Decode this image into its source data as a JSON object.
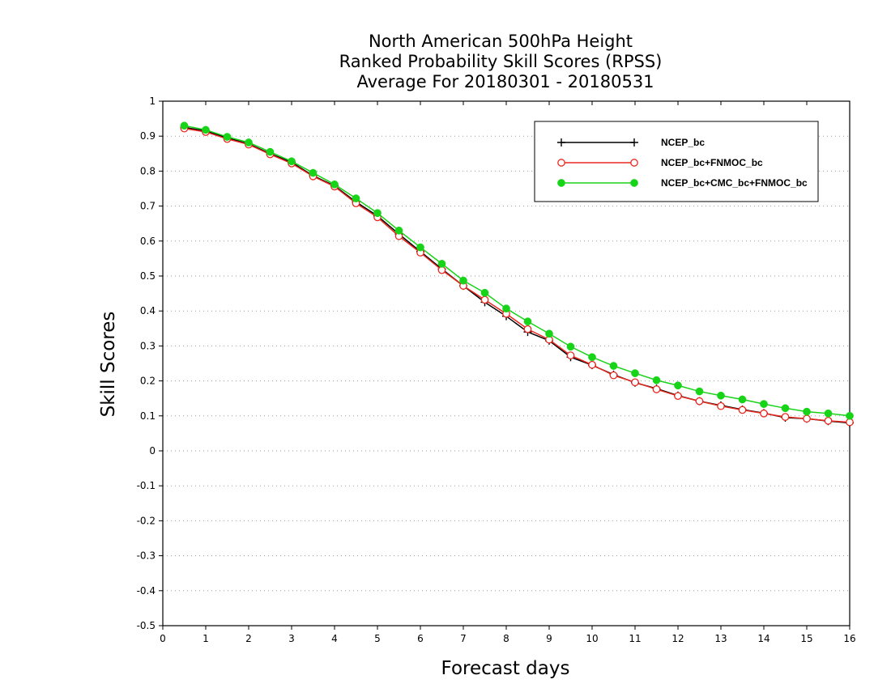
{
  "chart_data": {
    "type": "line",
    "title_lines": [
      "North American 500hPa Height",
      "Ranked Probability Skill Scores (RPSS)",
      "Average For 20180301 - 20180531"
    ],
    "xlabel": "Forecast days",
    "ylabel": "Skill Scores",
    "xlim": [
      0,
      16
    ],
    "ylim": [
      -0.5,
      1
    ],
    "x_ticks": [
      "0",
      "1",
      "2",
      "3",
      "4",
      "5",
      "6",
      "7",
      "8",
      "9",
      "10",
      "11",
      "12",
      "13",
      "14",
      "15",
      "16"
    ],
    "y_ticks": [
      "1",
      "0.9",
      "0.8",
      "0.7",
      "0.6",
      "0.5",
      "0.4",
      "0.3",
      "0.2",
      "0.1",
      "0",
      "-0.1",
      "-0.2",
      "-0.3",
      "-0.4",
      "-0.5"
    ],
    "grid": "horizontal dotted",
    "legend_position": "top-right",
    "x": [
      0.5,
      1,
      1.5,
      2,
      2.5,
      3,
      3.5,
      4,
      4.5,
      5,
      5.5,
      6,
      6.5,
      7,
      7.5,
      8,
      8.5,
      9,
      9.5,
      10,
      10.5,
      11,
      11.5,
      12,
      12.5,
      13,
      13.5,
      14,
      14.5,
      15,
      15.5,
      16
    ],
    "series": [
      {
        "name": "NCEP_bc",
        "color": "#000000",
        "marker": "plus",
        "values": [
          0.925,
          0.915,
          0.895,
          0.878,
          0.85,
          0.825,
          0.787,
          0.758,
          0.712,
          0.672,
          0.62,
          0.57,
          0.52,
          0.472,
          0.425,
          0.385,
          0.34,
          0.315,
          0.268,
          0.245,
          0.218,
          0.195,
          0.178,
          0.158,
          0.142,
          0.13,
          0.118,
          0.108,
          0.095,
          0.092,
          0.085,
          0.08
        ]
      },
      {
        "name": "NCEP_bc+FNMOC_bc",
        "color": "#e8281f",
        "marker": "open-circle",
        "values": [
          0.922,
          0.912,
          0.892,
          0.876,
          0.848,
          0.822,
          0.785,
          0.756,
          0.708,
          0.668,
          0.614,
          0.567,
          0.517,
          0.472,
          0.432,
          0.392,
          0.348,
          0.318,
          0.273,
          0.246,
          0.216,
          0.196,
          0.176,
          0.157,
          0.142,
          0.128,
          0.117,
          0.107,
          0.097,
          0.092,
          0.086,
          0.082
        ]
      },
      {
        "name": "NCEP_bc+CMC_bc+FNMOC_bc",
        "color": "#18d418",
        "marker": "filled-circle",
        "values": [
          0.93,
          0.918,
          0.898,
          0.882,
          0.855,
          0.828,
          0.795,
          0.762,
          0.722,
          0.68,
          0.63,
          0.582,
          0.535,
          0.487,
          0.452,
          0.407,
          0.37,
          0.335,
          0.298,
          0.268,
          0.243,
          0.222,
          0.202,
          0.187,
          0.17,
          0.158,
          0.147,
          0.134,
          0.122,
          0.112,
          0.107,
          0.1
        ]
      }
    ]
  }
}
